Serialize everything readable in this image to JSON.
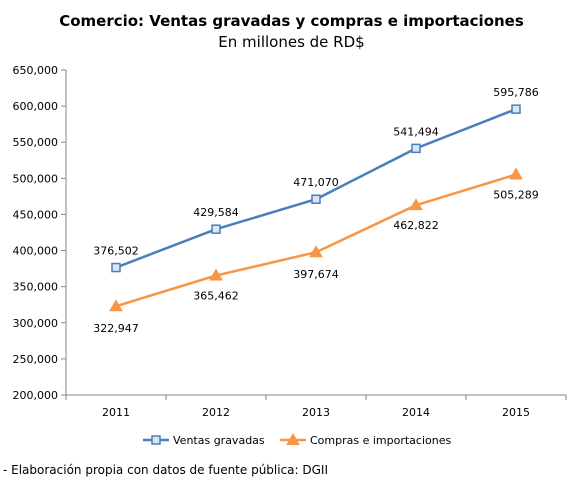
{
  "chart_data": {
    "type": "line",
    "title": "Comercio: Ventas gravadas  y compras e importaciones",
    "subtitle": "En millones de RD$",
    "categories": [
      "2011",
      "2012",
      "2013",
      "2014",
      "2015"
    ],
    "series": [
      {
        "name": "Ventas gravadas",
        "values": [
          376502,
          429584,
          471070,
          541494,
          595786
        ],
        "labels": [
          "376,502",
          "429,584",
          "471,070",
          "541,494",
          "595,786"
        ],
        "color": "#4a7ebb",
        "marker": "square"
      },
      {
        "name": "Compras e importaciones",
        "values": [
          322947,
          365462,
          397674,
          462822,
          505289
        ],
        "labels": [
          "322,947",
          "365,462",
          "397,674",
          "462,822",
          "505,289"
        ],
        "color": "#f79646",
        "marker": "triangle"
      }
    ],
    "ylim": [
      200000,
      650000
    ],
    "yticks": [
      200000,
      250000,
      300000,
      350000,
      400000,
      450000,
      500000,
      550000,
      600000,
      650000
    ],
    "ytick_labels": [
      "200,000",
      "250,000",
      "300,000",
      "350,000",
      "400,000",
      "450,000",
      "500,000",
      "550,000",
      "600,000",
      "650,000"
    ],
    "grid": false,
    "legend_position": "bottom"
  },
  "source_note": "- Elaboración propia con datos de fuente pública: DGII"
}
